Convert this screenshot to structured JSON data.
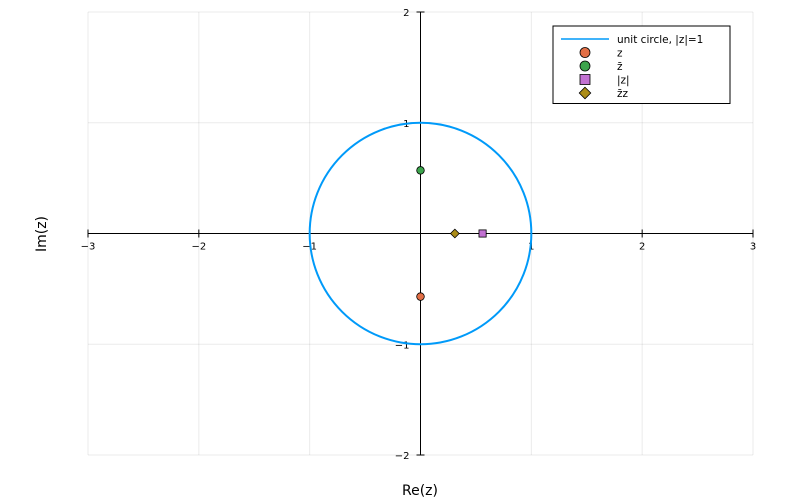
{
  "chart_data": {
    "type": "scatter",
    "title": "",
    "xlabel": "Re(z)",
    "ylabel": "Im(z)",
    "xlim": [
      -3,
      3
    ],
    "ylim": [
      -2,
      2
    ],
    "x_ticks": [
      -3,
      -2,
      -1,
      0,
      1,
      2,
      3
    ],
    "y_ticks": [
      -2,
      -1,
      0,
      1,
      2
    ],
    "x_tick_labels": [
      "−3",
      "−2",
      "−1",
      "0",
      "1",
      "2",
      "3"
    ],
    "y_tick_labels": [
      "−2",
      "−1",
      "0",
      "1",
      "2"
    ],
    "grid": true,
    "axes_through_origin": true,
    "legend_position": "top-right",
    "series": [
      {
        "name": "unit circle, |z|=1",
        "kind": "line",
        "color": "#009af9",
        "shape": "circle",
        "center": [
          0,
          0
        ],
        "radius": 1
      },
      {
        "name": "z",
        "kind": "scatter",
        "marker": "circle",
        "color": "#e26f46",
        "points": [
          [
            0,
            -0.57
          ]
        ]
      },
      {
        "name": "z̄",
        "kind": "scatter",
        "marker": "circle",
        "color": "#3da44d",
        "points": [
          [
            0,
            0.57
          ]
        ]
      },
      {
        "name": "|z|",
        "kind": "scatter",
        "marker": "square",
        "color": "#c271d2",
        "points": [
          [
            0.56,
            0
          ]
        ]
      },
      {
        "name": "z̄z",
        "kind": "scatter",
        "marker": "diamond",
        "color": "#ac8d18",
        "points": [
          [
            0.31,
            0
          ]
        ]
      }
    ]
  }
}
